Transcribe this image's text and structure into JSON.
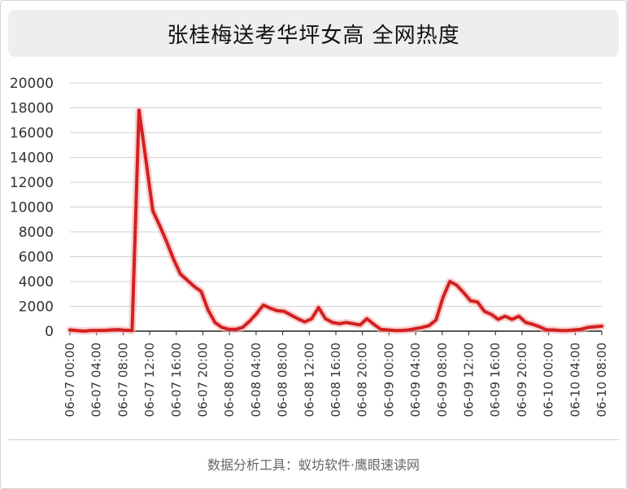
{
  "chart_data": {
    "type": "line",
    "title": "张桂梅送考华坪女高 全网热度",
    "xlabel": "",
    "ylabel": "",
    "ylim": [
      0,
      20000
    ],
    "yticks": [
      0,
      2000,
      4000,
      6000,
      8000,
      10000,
      12000,
      14000,
      16000,
      18000,
      20000
    ],
    "grid": true,
    "line_color": "#d42020",
    "xticks": [
      "06-07 00:00",
      "06-07 04:00",
      "06-07 08:00",
      "06-07 12:00",
      "06-07 16:00",
      "06-07 20:00",
      "06-08 00:00",
      "06-08 04:00",
      "06-08 08:00",
      "06-08 12:00",
      "06-08 16:00",
      "06-08 20:00",
      "06-09 00:00",
      "06-09 04:00",
      "06-09 08:00",
      "06-09 12:00",
      "06-09 16:00",
      "06-09 20:00",
      "06-10 00:00",
      "06-10 04:00",
      "06-10 08:00"
    ],
    "series": [
      {
        "name": "",
        "values": [
          100,
          50,
          0,
          50,
          60,
          60,
          100,
          120,
          70,
          50,
          17800,
          13800,
          9700,
          8500,
          7200,
          5800,
          4600,
          4100,
          3600,
          3200,
          1700,
          700,
          300,
          150,
          150,
          300,
          800,
          1400,
          2100,
          1850,
          1650,
          1600,
          1300,
          1000,
          750,
          1000,
          1900,
          1000,
          700,
          600,
          700,
          600,
          500,
          1000,
          550,
          150,
          100,
          50,
          50,
          100,
          200,
          300,
          450,
          900,
          2700,
          4000,
          3700,
          3100,
          2450,
          2350,
          1600,
          1350,
          950,
          1200,
          950,
          1200,
          700,
          550,
          350,
          100,
          100,
          50,
          50,
          100,
          150,
          300,
          350,
          400
        ]
      }
    ]
  },
  "footer": "数据分析工具：蚁坊软件·鹰眼速读网"
}
